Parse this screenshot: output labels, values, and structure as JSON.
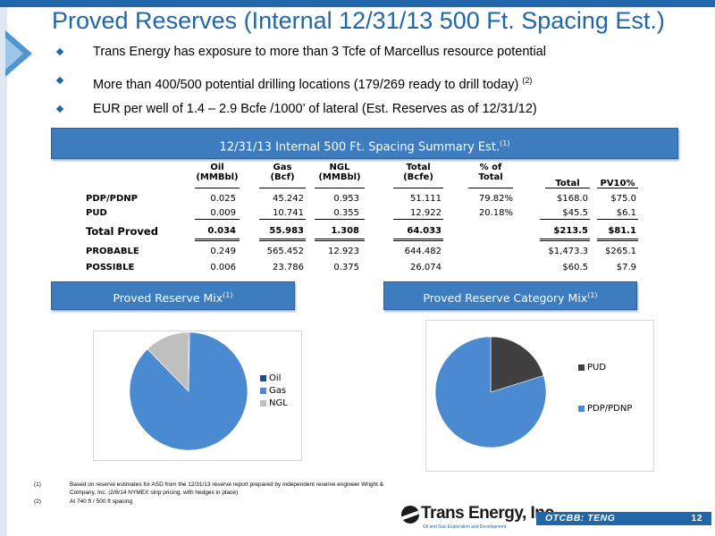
{
  "title": "Proved Reserves (Internal 12/31/13 500 Ft. Spacing Est.)",
  "bullets": [
    {
      "text": "Trans Energy has exposure to more than 3 Tcfe of Marcellus resource potential",
      "sup": ""
    },
    {
      "text": "More than 400/500 potential drilling locations (179/269 ready to drill today)",
      "sup": "(2)"
    },
    {
      "text": "EUR per well of 1.4 – 2.9 Bcfe /1000’ of lateral (Est. Reserves as of 12/31/12)",
      "sup": ""
    }
  ],
  "summary_banner": {
    "text": "12/31/13 Internal 500 Ft. Spacing Summary Est.",
    "sup": "(1)"
  },
  "table": {
    "headers": {
      "oil": [
        "Oil",
        "(MMBbl)"
      ],
      "gas": [
        "Gas",
        "(Bcf)"
      ],
      "ngl": [
        "NGL",
        "(MMBbl)"
      ],
      "total": [
        "Total",
        "(Bcfe)"
      ],
      "pct": [
        "% of",
        "Total"
      ],
      "total_usd": "Total",
      "pv10": "PV10%"
    },
    "rows": [
      {
        "label": "PDP/PDNP",
        "oil": "0.025",
        "gas": "45.242",
        "ngl": "0.953",
        "total": "51.111",
        "pct": "79.82%",
        "total_usd": "$168.0",
        "pv10": "$75.0"
      },
      {
        "label": "PUD",
        "oil": "0.009",
        "gas": "10.741",
        "ngl": "0.355",
        "total": "12.922",
        "pct": "20.18%",
        "total_usd": "$45.5",
        "pv10": "$6.1"
      },
      {
        "label": "Total Proved",
        "oil": "0.034",
        "gas": "55.983",
        "ngl": "1.308",
        "total": "64.033",
        "pct": "",
        "total_usd": "$213.5",
        "pv10": "$81.1"
      },
      {
        "label": "PROBABLE",
        "oil": "0.249",
        "gas": "565.452",
        "ngl": "12.923",
        "total": "644.482",
        "pct": "",
        "total_usd": "$1,473.3",
        "pv10": "$265.1"
      },
      {
        "label": "POSSIBLE",
        "oil": "0.006",
        "gas": "23.786",
        "ngl": "0.375",
        "total": "26.074",
        "pct": "",
        "total_usd": "$60.5",
        "pv10": "$7.9"
      }
    ]
  },
  "mix_banner": {
    "text": "Proved Reserve Mix",
    "sup": "(1)"
  },
  "category_banner": {
    "text": "Proved Reserve Category Mix",
    "sup": "(1)"
  },
  "chart_data": [
    {
      "type": "pie",
      "title": "",
      "categories": [
        "Oil",
        "Gas",
        "NGL"
      ],
      "values": [
        0.3,
        87.4,
        12.3
      ],
      "colors": [
        "#1f4e8c",
        "#4a8ad0",
        "#bfbfbf"
      ],
      "legend_position": "right"
    },
    {
      "type": "pie",
      "title": "",
      "categories": [
        "PUD",
        "PDP/PDNP"
      ],
      "values": [
        20.18,
        79.82
      ],
      "colors": [
        "#404040",
        "#4a8ad0"
      ],
      "legend_position": "right"
    }
  ],
  "footnotes": [
    {
      "num": "(1)",
      "text": "Based on reserve estimates for ASD from the 12/31/13 reserve report prepared by independent reserve engineer Wright & Company, Inc. (2/6/14 NYMEX strip pricing, with hedges in place)"
    },
    {
      "num": "(2)",
      "text": "At 740 ft / 500 ft spacing"
    }
  ],
  "logo": {
    "name": "Trans Energy, Inc.",
    "tagline": "Oil and Gas Exploration and Development"
  },
  "ticker": "OTCBB: TENG",
  "page_number": "12"
}
